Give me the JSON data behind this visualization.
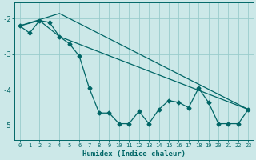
{
  "xlabel": "Humidex (Indice chaleur)",
  "bg_color": "#cce8e8",
  "grid_color": "#99cccc",
  "line_color": "#006666",
  "xlim": [
    -0.5,
    23.5
  ],
  "ylim": [
    -5.4,
    -1.55
  ],
  "line1_x": [
    0,
    1,
    2,
    3,
    4,
    5,
    6,
    7,
    8,
    9,
    10,
    11,
    12,
    13,
    14,
    15,
    16,
    17,
    18,
    19,
    20,
    21,
    22,
    23
  ],
  "line1_y": [
    -2.2,
    -2.4,
    -2.05,
    -2.1,
    -2.5,
    -2.7,
    -3.05,
    -3.95,
    -4.65,
    -4.65,
    -4.95,
    -4.95,
    -4.6,
    -4.95,
    -4.55,
    -4.3,
    -4.35,
    -4.5,
    -3.95,
    -4.35,
    -4.95,
    -4.95,
    -4.95,
    -4.55
  ],
  "line2_x": [
    0,
    2,
    4,
    23
  ],
  "line2_y": [
    -2.2,
    -2.05,
    -2.5,
    -4.55
  ],
  "line3_x": [
    0,
    4,
    23
  ],
  "line3_y": [
    -2.2,
    -1.85,
    -4.55
  ],
  "yticks": [
    -2,
    -3,
    -4,
    -5
  ],
  "xticks": [
    0,
    1,
    2,
    3,
    4,
    5,
    6,
    7,
    8,
    9,
    10,
    11,
    12,
    13,
    14,
    15,
    16,
    17,
    18,
    19,
    20,
    21,
    22,
    23
  ],
  "xlabel_fontsize": 6.5,
  "ytick_fontsize": 6.5,
  "xtick_fontsize": 5.0
}
